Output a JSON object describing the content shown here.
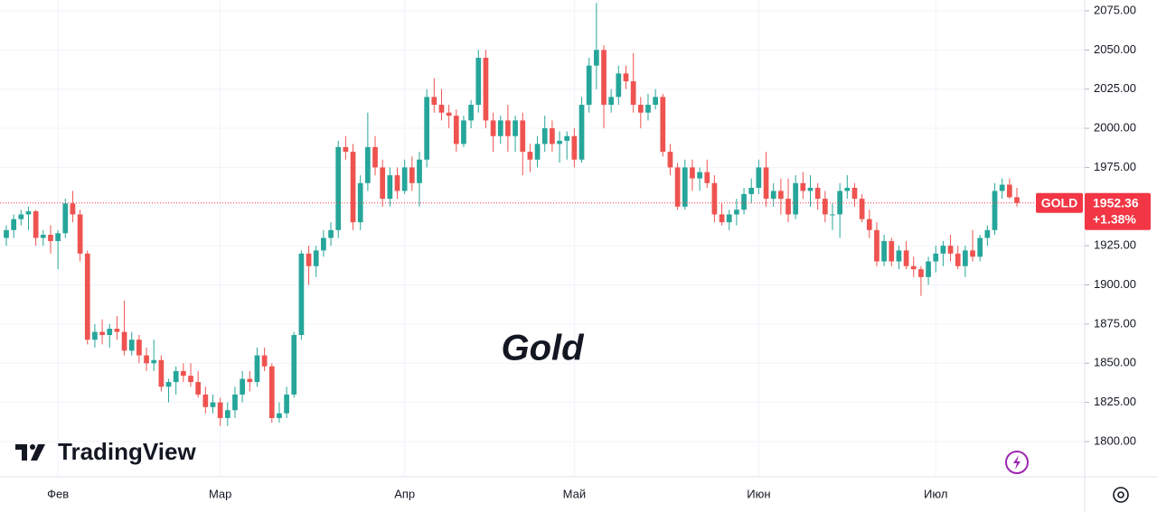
{
  "chart_data": {
    "type": "candlestick",
    "annotation": "Gold",
    "logo": "TradingView",
    "up_color": "#26a69a",
    "down_color": "#ef5350",
    "categories": [
      null,
      null,
      null,
      null,
      null,
      null,
      null,
      "Фев",
      null,
      null,
      null,
      null,
      null,
      null,
      null,
      null,
      null,
      null,
      null,
      null,
      null,
      null,
      null,
      null,
      null,
      null,
      null,
      null,
      null,
      "Мар",
      null,
      null,
      null,
      null,
      null,
      null,
      null,
      null,
      null,
      null,
      null,
      null,
      null,
      null,
      null,
      null,
      null,
      null,
      null,
      null,
      null,
      null,
      null,
      null,
      "Апр",
      null,
      null,
      null,
      null,
      null,
      null,
      null,
      null,
      null,
      null,
      null,
      null,
      null,
      null,
      null,
      null,
      null,
      null,
      null,
      null,
      null,
      null,
      "Май",
      null,
      null,
      null,
      null,
      null,
      null,
      null,
      null,
      null,
      null,
      null,
      null,
      null,
      null,
      null,
      null,
      null,
      null,
      null,
      null,
      null,
      null,
      null,
      null,
      "Июн",
      null,
      null,
      null,
      null,
      null,
      null,
      null,
      null,
      null,
      null,
      null,
      null,
      null,
      null,
      null,
      null,
      null,
      null,
      null,
      null,
      null,
      null,
      null,
      "Июл",
      null,
      null,
      null,
      null,
      null,
      null,
      null,
      null,
      null,
      null,
      null
    ],
    "open": [
      1930,
      1935,
      1942,
      1945,
      1947,
      1930,
      1932,
      1928,
      1933,
      1952,
      1945,
      1920,
      1865,
      1870,
      1868,
      1872,
      1870,
      1858,
      1865,
      1855,
      1850,
      1852,
      1835,
      1838,
      1845,
      1842,
      1838,
      1830,
      1822,
      1825,
      1815,
      1820,
      1830,
      1840,
      1838,
      1855,
      1848,
      1815,
      1818,
      1830,
      1868,
      1920,
      1912,
      1922,
      1930,
      1935,
      1988,
      1985,
      1940,
      1965,
      1988,
      1975,
      1955,
      1970,
      1960,
      1975,
      1965,
      1980,
      2020,
      2015,
      2010,
      2008,
      1990,
      2005,
      2015,
      2045,
      2005,
      1995,
      2005,
      1995,
      2005,
      1985,
      1980,
      1990,
      2000,
      1990,
      1992,
      1995,
      1980,
      2015,
      2040,
      2050,
      2015,
      2020,
      2035,
      2030,
      2015,
      2010,
      2015,
      2020,
      1985,
      1975,
      1950,
      1975,
      1968,
      1972,
      1965,
      1945,
      1940,
      1945,
      1948,
      1958,
      1962,
      1975,
      1955,
      1960,
      1955,
      1945,
      1965,
      1960,
      1962,
      1955,
      1945,
      1945,
      1960,
      1962,
      1955,
      1942,
      1935,
      1915,
      1928,
      1915,
      1922,
      1912,
      1910,
      1905,
      1915,
      1920,
      1925,
      1920,
      1912,
      1922,
      1918,
      1930,
      1935,
      1960,
      1964,
      1956
    ],
    "high": [
      1938,
      1945,
      1948,
      1950,
      1948,
      1935,
      1938,
      1935,
      1955,
      1960,
      1948,
      1922,
      1875,
      1878,
      1875,
      1880,
      1890,
      1870,
      1868,
      1860,
      1865,
      1855,
      1840,
      1848,
      1850,
      1850,
      1845,
      1835,
      1830,
      1828,
      1825,
      1835,
      1845,
      1845,
      1860,
      1860,
      1850,
      1825,
      1835,
      1870,
      1922,
      1925,
      1925,
      1935,
      1940,
      1992,
      1995,
      1990,
      1970,
      2010,
      1995,
      1980,
      1975,
      1975,
      1980,
      1982,
      1985,
      2025,
      2032,
      2025,
      2015,
      2012,
      2008,
      2018,
      2050,
      2050,
      2010,
      2008,
      2015,
      2008,
      2010,
      1990,
      1995,
      2008,
      2005,
      1998,
      1998,
      2000,
      2020,
      2045,
      2080,
      2053,
      2025,
      2040,
      2040,
      2048,
      2020,
      2022,
      2025,
      2022,
      1990,
      1978,
      1980,
      1980,
      1975,
      1980,
      1970,
      1952,
      1948,
      1955,
      1962,
      1968,
      1980,
      1985,
      1965,
      1968,
      1968,
      1970,
      1972,
      1970,
      1965,
      1960,
      1952,
      1965,
      1970,
      1965,
      1958,
      1948,
      1940,
      1932,
      1930,
      1925,
      1928,
      1918,
      1912,
      1918,
      1925,
      1928,
      1932,
      1925,
      1925,
      1935,
      1932,
      1938,
      1965,
      1968,
      1968,
      1962
    ],
    "low": [
      1925,
      1930,
      1938,
      1935,
      1925,
      1925,
      1920,
      1910,
      1930,
      1940,
      1915,
      1862,
      1860,
      1862,
      1860,
      1865,
      1855,
      1855,
      1850,
      1845,
      1845,
      1832,
      1825,
      1830,
      1838,
      1835,
      1828,
      1818,
      1818,
      1810,
      1810,
      1815,
      1825,
      1832,
      1835,
      1845,
      1812,
      1812,
      1815,
      1828,
      1865,
      1900,
      1905,
      1918,
      1925,
      1930,
      1980,
      1935,
      1935,
      1960,
      1970,
      1950,
      1950,
      1955,
      1958,
      1960,
      1950,
      1975,
      2010,
      2005,
      2000,
      1985,
      1988,
      2000,
      2010,
      2000,
      1985,
      1990,
      1985,
      1985,
      1970,
      1972,
      1975,
      1985,
      1985,
      1978,
      1980,
      1975,
      1978,
      2010,
      2025,
      2000,
      2010,
      2015,
      2025,
      2010,
      2000,
      2005,
      2012,
      1982,
      1970,
      1948,
      1948,
      1960,
      1960,
      1962,
      1940,
      1938,
      1935,
      1938,
      1945,
      1952,
      1958,
      1950,
      1950,
      1945,
      1940,
      1942,
      1955,
      1950,
      1948,
      1940,
      1935,
      1930,
      1955,
      1950,
      1940,
      1930,
      1912,
      1912,
      1912,
      1910,
      1910,
      1905,
      1893,
      1900,
      1908,
      1912,
      1915,
      1910,
      1905,
      1915,
      1915,
      1925,
      1932,
      1955,
      1955,
      1950
    ],
    "close": [
      1935,
      1942,
      1945,
      1947,
      1930,
      1932,
      1928,
      1933,
      1952,
      1945,
      1920,
      1865,
      1870,
      1868,
      1872,
      1870,
      1858,
      1865,
      1855,
      1850,
      1852,
      1835,
      1838,
      1845,
      1842,
      1838,
      1830,
      1822,
      1825,
      1815,
      1820,
      1830,
      1840,
      1838,
      1855,
      1848,
      1815,
      1818,
      1830,
      1868,
      1920,
      1912,
      1922,
      1930,
      1935,
      1988,
      1985,
      1940,
      1965,
      1988,
      1975,
      1955,
      1970,
      1960,
      1975,
      1965,
      1980,
      2020,
      2015,
      2010,
      2008,
      1990,
      2005,
      2015,
      2045,
      2005,
      1995,
      2005,
      1995,
      2005,
      1985,
      1980,
      1990,
      2000,
      1990,
      1992,
      1995,
      1980,
      2015,
      2040,
      2050,
      2015,
      2020,
      2035,
      2030,
      2015,
      2010,
      2015,
      2020,
      1985,
      1975,
      1950,
      1975,
      1968,
      1972,
      1965,
      1945,
      1940,
      1945,
      1948,
      1958,
      1962,
      1975,
      1955,
      1960,
      1955,
      1945,
      1965,
      1960,
      1962,
      1955,
      1945,
      1945,
      1960,
      1962,
      1955,
      1942,
      1935,
      1915,
      1928,
      1915,
      1922,
      1912,
      1910,
      1905,
      1915,
      1920,
      1925,
      1920,
      1912,
      1922,
      1918,
      1930,
      1935,
      1960,
      1964,
      1956,
      1952.36
    ],
    "ylim": [
      1777.5,
      2081.9
    ],
    "yticks": [
      {
        "value": 1800,
        "label": "1800.00"
      },
      {
        "value": 1825,
        "label": "1825.00"
      },
      {
        "value": 1850,
        "label": "1850.00"
      },
      {
        "value": 1875,
        "label": "1875.00"
      },
      {
        "value": 1900,
        "label": "1900.00"
      },
      {
        "value": 1925,
        "label": "1925.00"
      },
      {
        "value": 1950,
        "label": "1950.00"
      },
      {
        "value": 1975,
        "label": "1975.00"
      },
      {
        "value": 2000,
        "label": "2000.00"
      },
      {
        "value": 2025,
        "label": "2025.00"
      },
      {
        "value": 2050,
        "label": "2050.00"
      },
      {
        "value": 2075,
        "label": "2075.00"
      }
    ],
    "grid": true,
    "price_tag": {
      "symbol": "GOLD",
      "value": 1952.36,
      "change": "+1.38%",
      "color": "#f23645"
    }
  }
}
